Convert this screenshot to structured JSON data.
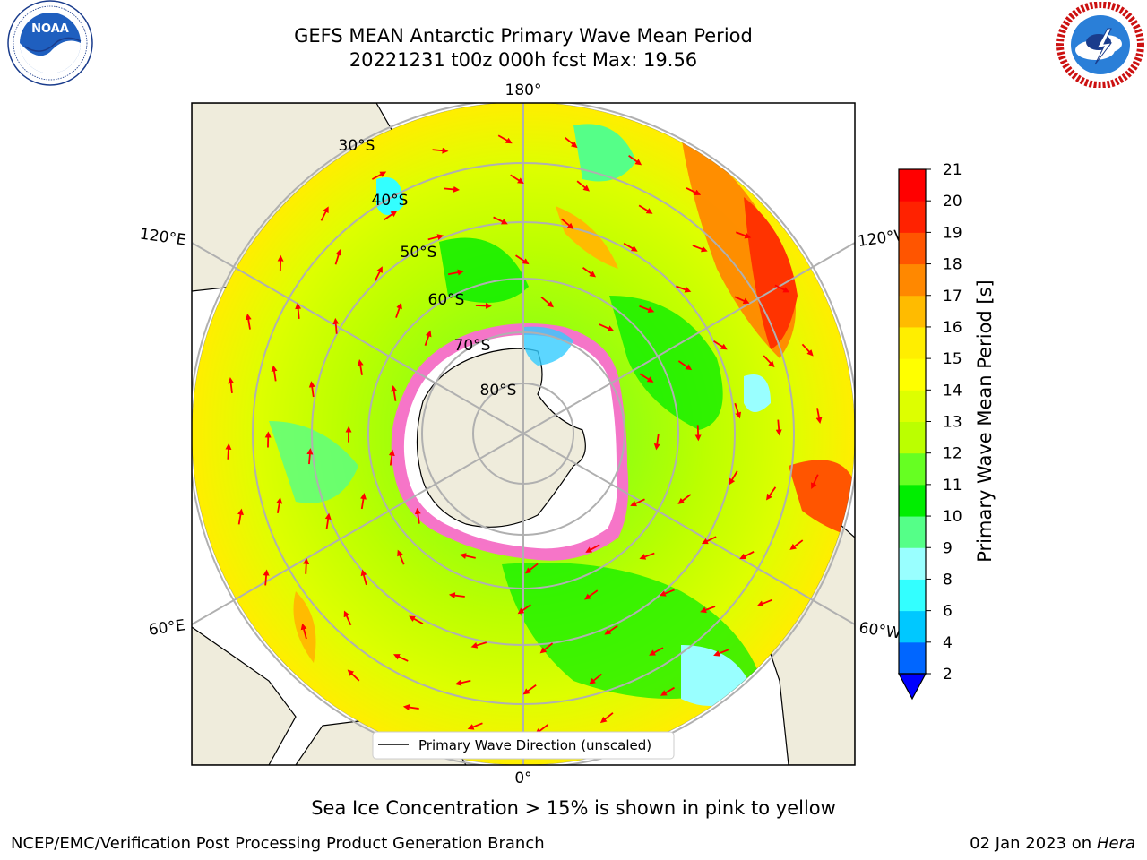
{
  "title": {
    "line1": "GEFS MEAN Antarctic Primary Wave Mean Period",
    "line2": "20221231 t00z 000h fcst   Max: 19.56"
  },
  "logos": {
    "left": {
      "name": "NOAA",
      "ring_text": "NATIONAL OCEANIC AND ATMOSPHERIC ADMINISTRATION · U.S. DEPARTMENT OF COMMERCE"
    },
    "right": {
      "name": "NATIONAL WEATHER SERVICE"
    }
  },
  "map": {
    "projection": "south polar stereographic",
    "longitude_labels": {
      "top": "180°",
      "bottom": "0°",
      "upper_left": "120°E",
      "lower_left": "60°E",
      "upper_right": "120°W",
      "lower_right": "60°W"
    },
    "latitude_labels": [
      "30°S",
      "40°S",
      "50°S",
      "60°S",
      "70°S",
      "80°S"
    ],
    "legend": "Primary Wave Direction (unscaled)",
    "arrow_color": "#ff0000",
    "land_color": "#efecdc",
    "grid_color": "#b0b0b0"
  },
  "colorbar": {
    "label": "Primary Wave Mean Period [s]",
    "ticks": [
      "2",
      "4",
      "6",
      "8",
      "9",
      "10",
      "11",
      "12",
      "13",
      "14",
      "15",
      "16",
      "17",
      "18",
      "19",
      "20",
      "21"
    ],
    "colors_bottom_to_top": [
      "#0066ff",
      "#00c8ff",
      "#33ffff",
      "#99ffff",
      "#55ff88",
      "#00ee00",
      "#66ff22",
      "#bbff00",
      "#ddff00",
      "#ffff00",
      "#ffee00",
      "#ffbb00",
      "#ff8800",
      "#ff5500",
      "#ff2200",
      "#ff0000"
    ],
    "extend_below_color": "#0000ff"
  },
  "caption": "Sea Ice Concentration > 15% is shown in pink to yellow",
  "footer": {
    "left": "NCEP/EMC/Verification Post Processing Product Generation Branch",
    "right_date": "02 Jan 2023 on",
    "right_host": "Hera"
  }
}
